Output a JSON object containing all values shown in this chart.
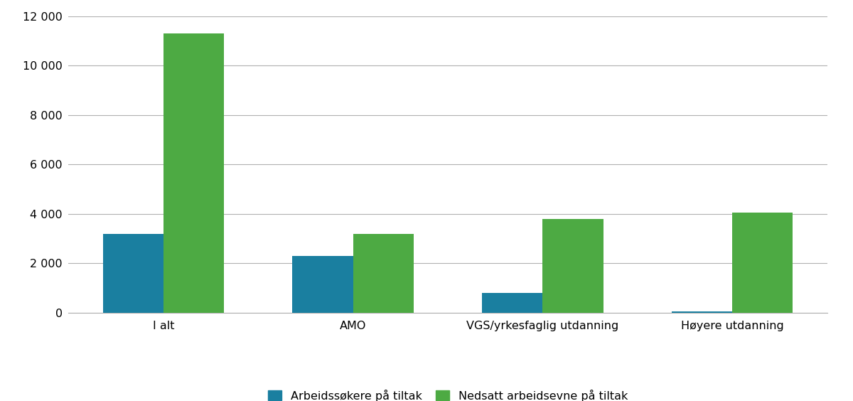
{
  "categories": [
    "I alt",
    "AMO",
    "VGS/yrkesfaglig utdanning",
    "Høyere utdanning"
  ],
  "blue_values": [
    3200,
    2300,
    800,
    60
  ],
  "green_values": [
    11300,
    3200,
    3800,
    4050
  ],
  "blue_color": "#1a7fa0",
  "green_color": "#4daa43",
  "ylim": [
    0,
    12000
  ],
  "yticks": [
    0,
    2000,
    4000,
    6000,
    8000,
    10000,
    12000
  ],
  "legend_blue": "Arbeidssøkere på tiltak",
  "legend_green": "Nedsatt arbeidsevne på tiltak",
  "bar_width": 0.32,
  "background_color": "#ffffff",
  "grid_color": "#b0b0b0"
}
